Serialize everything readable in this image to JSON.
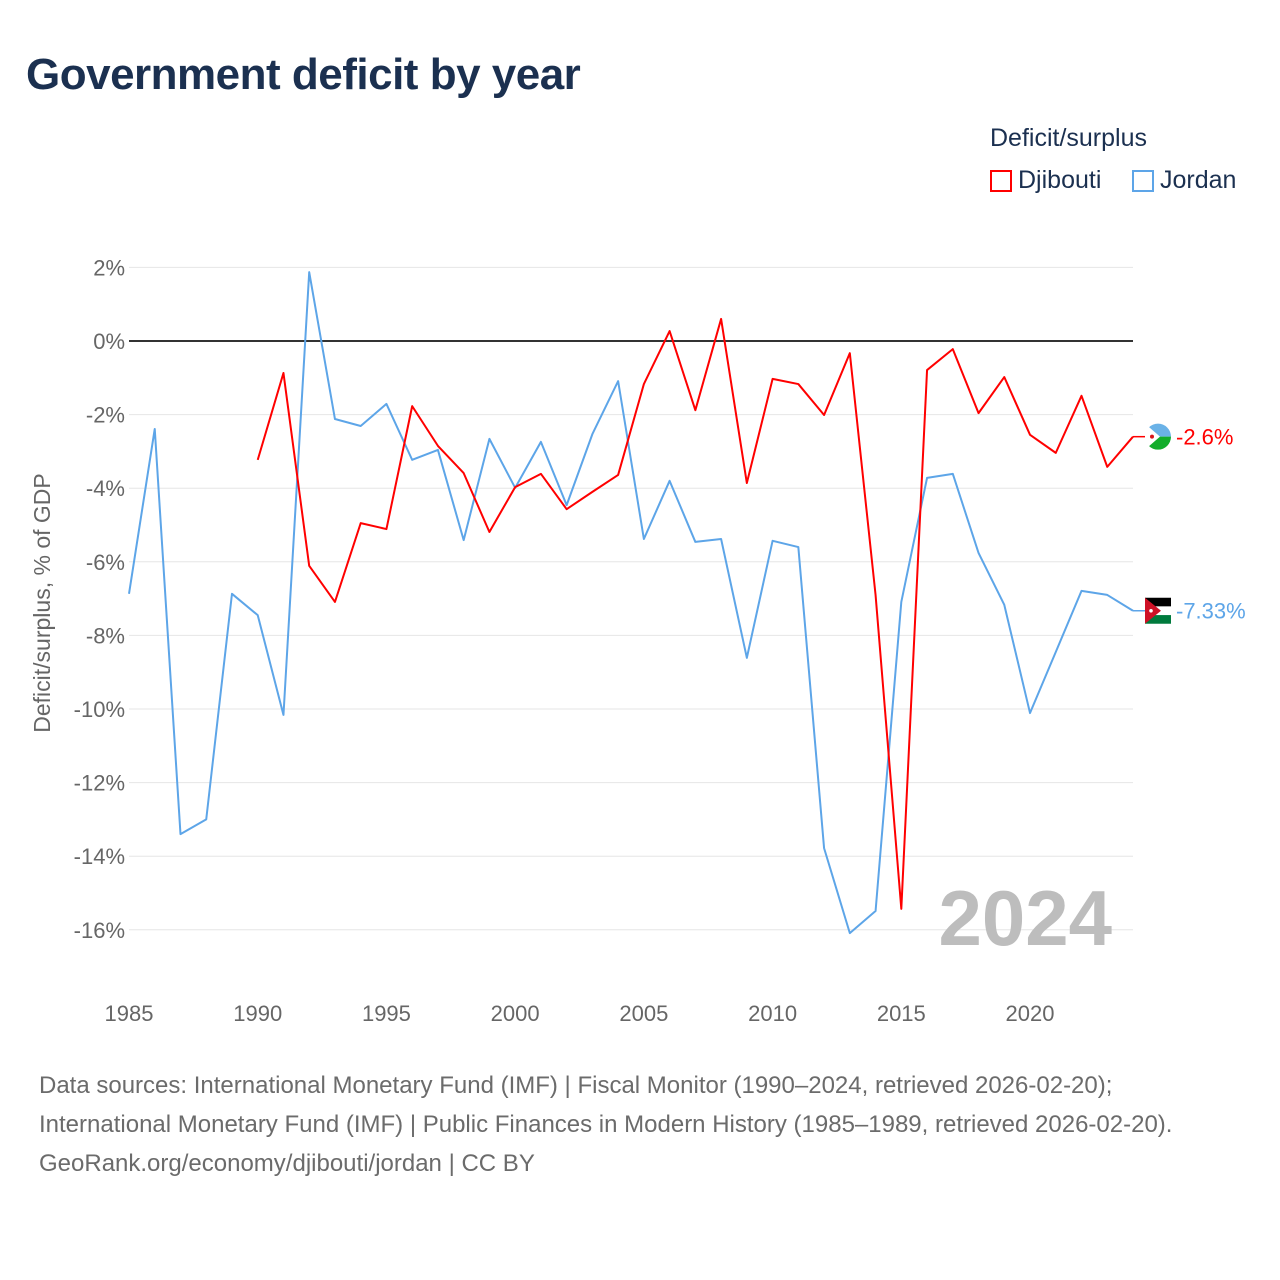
{
  "title": "Government deficit by year",
  "legend": {
    "title": "Deficit/surplus",
    "items": [
      {
        "name": "Djibouti",
        "color": "#ff0000"
      },
      {
        "name": "Jordan",
        "color": "#5da5e8"
      }
    ]
  },
  "chart_data": {
    "type": "line",
    "title": "Government deficit by year",
    "xlabel": "",
    "ylabel": "Deficit/surplus, % of GDP",
    "xlim": [
      1985,
      2024
    ],
    "ylim": [
      -17,
      2.5
    ],
    "xticks": [
      1985,
      1990,
      1995,
      2000,
      2005,
      2010,
      2015,
      2020
    ],
    "xtick_labels": [
      "1985",
      "1990",
      "1995",
      "2000",
      "2005",
      "2010",
      "2015",
      "2020"
    ],
    "yticks": [
      2,
      0,
      -2,
      -4,
      -6,
      -8,
      -10,
      -12,
      -14,
      -16
    ],
    "ytick_labels": [
      "2%",
      "0%",
      "-2%",
      "-4%",
      "-6%",
      "-8%",
      "-10%",
      "-12%",
      "-14%",
      "-16%"
    ],
    "grid": true,
    "legend_position": "top-right",
    "year_watermark": "2024",
    "series": [
      {
        "name": "Djibouti",
        "color": "#ff0000",
        "end_label": "-2.6%",
        "x": [
          1990,
          1991,
          1992,
          1993,
          1994,
          1995,
          1996,
          1997,
          1998,
          1999,
          2000,
          2001,
          2002,
          2003,
          2004,
          2005,
          2006,
          2007,
          2008,
          2009,
          2010,
          2011,
          2012,
          2013,
          2014,
          2015,
          2016,
          2017,
          2018,
          2019,
          2020,
          2021,
          2022,
          2023,
          2024
        ],
        "values": [
          -3.23,
          -0.87,
          -6.11,
          -7.09,
          -4.95,
          -5.11,
          -1.77,
          -2.85,
          -3.59,
          -5.19,
          -3.97,
          -3.61,
          -4.57,
          -4.1,
          -3.64,
          -1.17,
          0.27,
          -1.88,
          0.6,
          -3.86,
          -1.03,
          -1.17,
          -2.01,
          -0.33,
          -6.9,
          -15.43,
          -0.79,
          -0.22,
          -1.96,
          -0.98,
          -2.55,
          -3.04,
          -1.49,
          -3.42,
          -2.6
        ]
      },
      {
        "name": "Jordan",
        "color": "#5da5e8",
        "end_label": "-7.33%",
        "x": [
          1985,
          1986,
          1987,
          1988,
          1989,
          1990,
          1991,
          1992,
          1993,
          1994,
          1995,
          1996,
          1997,
          1998,
          1999,
          2000,
          2001,
          2002,
          2003,
          2004,
          2005,
          2006,
          2007,
          2008,
          2009,
          2010,
          2011,
          2012,
          2013,
          2014,
          2015,
          2016,
          2017,
          2018,
          2019,
          2020,
          2021,
          2022,
          2023,
          2024
        ],
        "values": [
          -6.87,
          -2.39,
          -13.4,
          -13.0,
          -6.87,
          -7.45,
          -10.16,
          1.87,
          -2.12,
          -2.31,
          -1.71,
          -3.23,
          -2.96,
          -5.41,
          -2.66,
          -3.99,
          -2.74,
          -4.46,
          -2.53,
          -1.09,
          -5.38,
          -3.8,
          -5.46,
          -5.38,
          -8.61,
          -5.43,
          -5.6,
          -13.78,
          -16.09,
          -15.49,
          -7.09,
          -3.72,
          -3.61,
          -5.76,
          -7.17,
          -10.11,
          -8.45,
          -6.79,
          -6.9,
          -7.33
        ]
      }
    ]
  },
  "footer": {
    "sources": "Data sources: International Monetary Fund (IMF) | Fiscal Monitor (1990–2024, retrieved 2026-02-20); International Monetary Fund (IMF) | Public Finances in Modern History (1985–1989, retrieved 2026-02-20).",
    "credit": "GeoRank.org/economy/djibouti/jordan | CC BY"
  }
}
